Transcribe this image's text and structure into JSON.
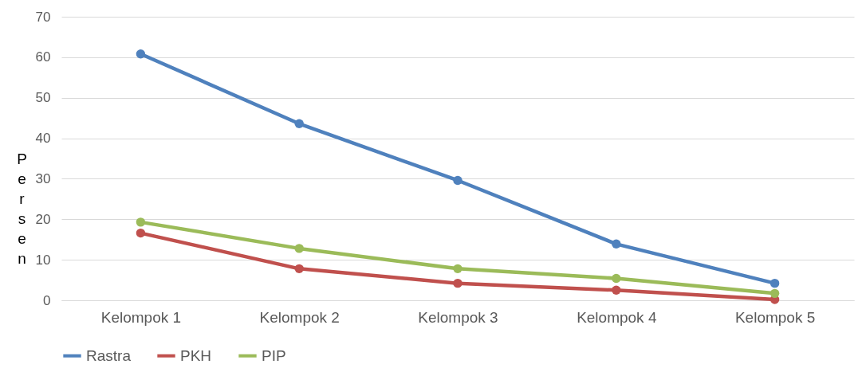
{
  "chart_data": {
    "type": "line",
    "ylabel": "Persen",
    "categories": [
      "Kelompok 1",
      "Kelompok 2",
      "Kelompok 3",
      "Kelompok 4",
      "Kelompok 5"
    ],
    "series": [
      {
        "name": "Rastra",
        "color": "#4f81bd",
        "values": [
          60.8,
          43.6,
          29.6,
          13.9,
          4.2
        ]
      },
      {
        "name": "PKH",
        "color": "#c0504d",
        "values": [
          16.6,
          7.8,
          4.2,
          2.5,
          0.2
        ]
      },
      {
        "name": "PIP",
        "color": "#9bbb59",
        "values": [
          19.3,
          12.8,
          7.8,
          5.4,
          1.7
        ]
      }
    ],
    "ylim": [
      0,
      70
    ],
    "yticks": [
      0,
      10,
      20,
      30,
      40,
      50,
      60,
      70
    ],
    "grid": "y",
    "legend": "bottom",
    "marker": "circle",
    "line_style": "solid"
  }
}
